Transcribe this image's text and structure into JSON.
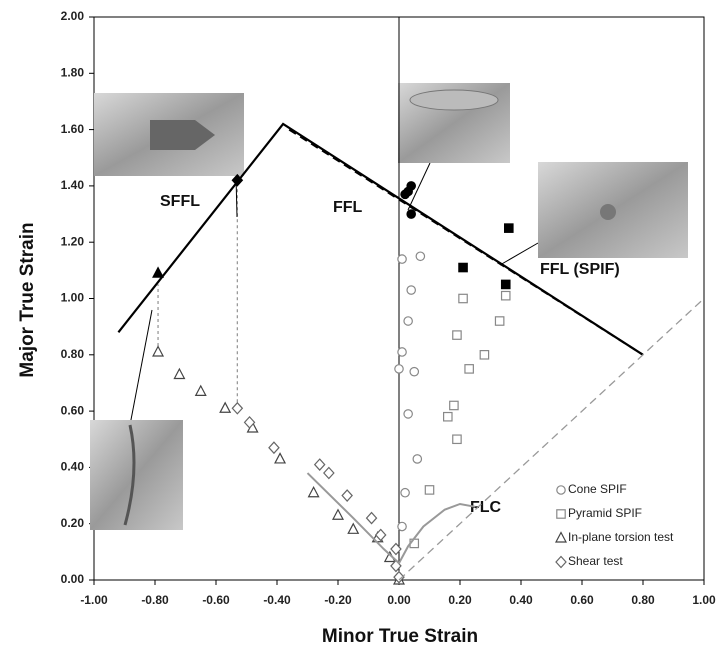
{
  "chart_data": {
    "type": "scatter",
    "x_label": "Minor True Strain",
    "y_label": "Major True Strain",
    "xlim": [
      -1.0,
      1.0
    ],
    "ylim": [
      0.0,
      2.0
    ],
    "xticks": [
      {
        "value": -1.0,
        "label": "-1.00"
      },
      {
        "value": -0.8,
        "label": "-0.80"
      },
      {
        "value": -0.6,
        "label": "-0.60"
      },
      {
        "value": -0.4,
        "label": "-0.40"
      },
      {
        "value": -0.2,
        "label": "-0.20"
      },
      {
        "value": 0,
        "label": "0.00"
      },
      {
        "value": 0.2,
        "label": "0.20"
      },
      {
        "value": 0.4,
        "label": "0.40"
      },
      {
        "value": 0.6,
        "label": "0.60"
      },
      {
        "value": 0.8,
        "label": "0.80"
      },
      {
        "value": 1.0,
        "label": "1.00"
      }
    ],
    "yticks": [
      {
        "value": 0,
        "label": "0.00"
      },
      {
        "value": 0.2,
        "label": "0.20"
      },
      {
        "value": 0.4,
        "label": "0.40"
      },
      {
        "value": 0.6,
        "label": "0.60"
      },
      {
        "value": 0.8,
        "label": "0.80"
      },
      {
        "value": 1.0,
        "label": "1.00"
      },
      {
        "value": 1.2,
        "label": "1.20"
      },
      {
        "value": 1.4,
        "label": "1.40"
      },
      {
        "value": 1.6,
        "label": "1.60"
      },
      {
        "value": 1.8,
        "label": "1.80"
      },
      {
        "value": 2.0,
        "label": "2.00"
      }
    ],
    "grid": false,
    "legend": "lower right",
    "annotations": [
      "SFFL",
      "FFL",
      "FFL (SPIF)",
      "FLC"
    ],
    "series": [
      {
        "name": "Cone SPIF",
        "mode": "markers",
        "marker": "circle",
        "filled": false,
        "color": "#888888",
        "x": [
          0.01,
          0.07,
          0.04,
          0.03,
          0.01,
          0.0,
          0.05,
          0.03,
          0.06,
          0.02,
          0.01
        ],
        "values": [
          1.14,
          1.15,
          1.03,
          0.92,
          0.81,
          0.75,
          0.74,
          0.59,
          0.43,
          0.31,
          0.19
        ]
      },
      {
        "name": "Pyramid SPIF",
        "mode": "markers",
        "marker": "square",
        "filled": false,
        "color": "#888888",
        "x": [
          0.21,
          0.35,
          0.33,
          0.19,
          0.28,
          0.23,
          0.18,
          0.16,
          0.19,
          0.1,
          0.05
        ],
        "values": [
          1.0,
          1.01,
          0.92,
          0.87,
          0.8,
          0.75,
          0.62,
          0.58,
          0.5,
          0.32,
          0.13
        ]
      },
      {
        "name": "In-plane torsion test",
        "mode": "markers",
        "marker": "triangle",
        "filled": false,
        "color": "#444444",
        "x": [
          -0.79,
          -0.72,
          -0.65,
          -0.57,
          -0.48,
          -0.39,
          -0.28,
          -0.2,
          -0.15,
          -0.07,
          -0.03,
          0.0
        ],
        "values": [
          0.81,
          0.73,
          0.67,
          0.61,
          0.54,
          0.43,
          0.31,
          0.23,
          0.18,
          0.15,
          0.08,
          0.0
        ]
      },
      {
        "name": "Shear test",
        "mode": "markers",
        "marker": "diamond",
        "filled": false,
        "color": "#666666",
        "x": [
          -0.53,
          -0.49,
          -0.41,
          -0.26,
          -0.23,
          -0.17,
          -0.09,
          -0.06,
          -0.01,
          -0.01,
          0.0
        ],
        "values": [
          0.61,
          0.56,
          0.47,
          0.41,
          0.38,
          0.3,
          0.22,
          0.16,
          0.11,
          0.05,
          0.01
        ]
      },
      {
        "mode": "markers",
        "marker": "circle",
        "filled": true,
        "color": "#000000",
        "x": [
          0.02,
          0.03,
          0.04,
          0.04
        ],
        "values": [
          1.37,
          1.38,
          1.4,
          1.3
        ]
      },
      {
        "mode": "markers",
        "marker": "square",
        "filled": true,
        "color": "#000000",
        "x": [
          0.36,
          0.21,
          0.35
        ],
        "values": [
          1.25,
          1.11,
          1.05
        ]
      },
      {
        "mode": "markers",
        "marker": "triangle",
        "filled": true,
        "color": "#000000",
        "x": [
          -0.79
        ],
        "values": [
          1.09
        ]
      },
      {
        "mode": "markers",
        "marker": "diamond",
        "filled": true,
        "color": "#000000",
        "x": [
          -0.53
        ],
        "values": [
          1.42
        ]
      },
      {
        "mode": "line",
        "dash": "solid",
        "color": "#000000",
        "width": 2.2,
        "x": [
          -0.92,
          -0.38,
          0.8
        ],
        "values": [
          0.88,
          1.62,
          0.8
        ]
      },
      {
        "mode": "line",
        "dash": "dashed",
        "color": "#000000",
        "width": 2,
        "x": [
          -0.36,
          0.8
        ],
        "values": [
          1.6,
          0.8
        ]
      },
      {
        "mode": "line",
        "dash": "solid",
        "color": "#999999",
        "width": 2,
        "x": [
          -0.3,
          -0.15,
          -0.05,
          0.0,
          0.03,
          0.08,
          0.15,
          0.2,
          0.25
        ],
        "values": [
          0.38,
          0.22,
          0.11,
          0.06,
          0.12,
          0.19,
          0.25,
          0.27,
          0.26
        ]
      },
      {
        "mode": "line",
        "dash": "dashed",
        "color": "#999999",
        "width": 1.3,
        "x": [
          0.0,
          1.0
        ],
        "values": [
          0.0,
          1.0
        ]
      },
      {
        "mode": "line",
        "dash": "dotted",
        "color": "#999999",
        "width": 1.3,
        "x": [
          -0.79,
          -0.79
        ],
        "values": [
          0.81,
          1.05
        ]
      },
      {
        "mode": "line",
        "dash": "dotted",
        "color": "#999999",
        "width": 1.3,
        "x": [
          -0.53,
          -0.53
        ],
        "values": [
          0.61,
          1.4
        ]
      }
    ]
  }
}
